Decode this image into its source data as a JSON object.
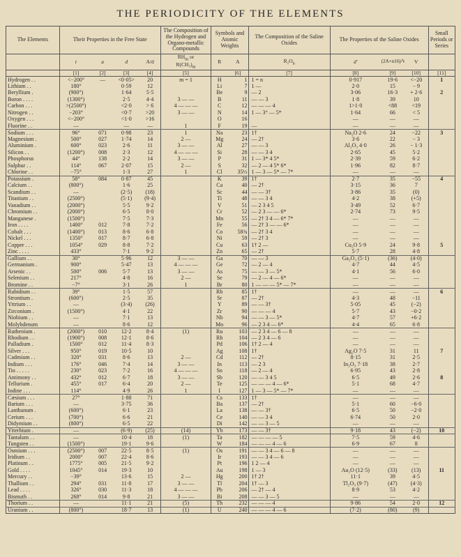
{
  "title": "THE PERIODICITY OF THE ELEMENTS",
  "headers": {
    "elements": "The Elements",
    "free_state": "Their Properties in the Free State",
    "hydrogen_comp": "The Composition of the Hydrogen and Organo-metallic Compounds",
    "symbols": "Symbols and Atomic Weights",
    "saline_comp": "The Composition of the Saline Oxides",
    "saline_props": "The Properties of the Saline Oxides",
    "periods": "Small Periods or Series"
  },
  "subheaders": {
    "t": "t",
    "a": "a",
    "d": "d",
    "A_d": "A/d",
    "RHm": "RH<sub>m</sub> or R(CH<sub>3</sub>)<sub>m</sub>",
    "R": "R",
    "A": "A",
    "R2On": "R₂O<sub>n</sub>",
    "dprime": "d′",
    "vol": "(2A+n16)/V",
    "V": "V",
    "col_nums": [
      "[1]",
      "[2]",
      "[3]",
      "[4]",
      "[5]",
      "[6]",
      "[7]",
      "[8]",
      "[9]",
      "[10]",
      "[11]"
    ]
  },
  "rows": [
    {
      "el": "Hydrogen",
      "t": "<−200°",
      "a": "—",
      "d": "<0·05>",
      "Ad": "20",
      "h": "m = 1",
      "R": "H",
      "A": "1",
      "ox": "1 = n",
      "d2": "0·917",
      "v": "19·6",
      "V": "<−20",
      "s": "1",
      "g": 1
    },
    {
      "el": "Lithium",
      "t": "180°",
      "a": "",
      "d": "0·59",
      "Ad": "12",
      "h": "",
      "R": "Li",
      "A": "7",
      "ox": "1 —",
      "d2": "2·0",
      "v": "15",
      "V": "− 9",
      "s": "",
      "g": 1
    },
    {
      "el": "Beryllium",
      "t": "(900°)",
      "a": "",
      "d": "1·64",
      "Ad": "5·5",
      "h": "",
      "R": "Be",
      "A": "9",
      "ox": "— 2",
      "d2": "3·06",
      "v": "16·3",
      "V": "+ 2·6",
      "s": "2",
      "g": 1
    },
    {
      "el": "Boron",
      "t": "(1300°)",
      "a": "",
      "d": "2·5",
      "Ad": "4·4",
      "h": "3 — —",
      "R": "B",
      "A": "11",
      "ox": "— — 3",
      "d2": "1·8",
      "v": "39",
      "V": "10",
      "s": "",
      "g": 1
    },
    {
      "el": "Carbon",
      "t": ">(2500°)",
      "a": "",
      "d": "<2·0",
      "Ad": "> 6",
      "h": "4 — — —",
      "R": "C",
      "A": "12",
      "ox": "— — — 4",
      "d2": "1>1·0",
      "v": "<88",
      "V": "<19",
      "s": "",
      "g": 1
    },
    {
      "el": "Nitrogen",
      "t": "−203°",
      "a": "",
      "d": "<0·7",
      "Ad": ">20",
      "h": "3 — —",
      "R": "N",
      "A": "14",
      "ox": "1 — 3° — 5*",
      "d2": "1·64",
      "v": "66",
      "V": "< 5",
      "s": "",
      "g": 1
    },
    {
      "el": "Oxygen",
      "t": "<−200°",
      "a": "",
      "d": "<1·0",
      "Ad": ">16",
      "h": "",
      "R": "O",
      "A": "16",
      "ox": "",
      "d2": "—",
      "v": "—",
      "V": "—",
      "s": "",
      "g": 1
    },
    {
      "el": "Fluorine",
      "t": "—",
      "a": "",
      "d": "—",
      "Ad": "—",
      "h": "1",
      "R": "F",
      "A": "19",
      "ox": "—",
      "d2": "—",
      "v": "—",
      "V": "—",
      "s": "",
      "g": 1
    },
    {
      "el": "Sodium",
      "t": "96°",
      "a": "071",
      "d": "0·98",
      "Ad": "23",
      "h": "1",
      "R": "Na",
      "A": "23",
      "ox": "1†",
      "d2": "Na₂O 2·6",
      "v": "24",
      "V": "−22",
      "s": "3",
      "g": 2
    },
    {
      "el": "Magnesium",
      "t": "500°",
      "a": "027",
      "d": "1·74",
      "Ad": "14",
      "h": "2 —",
      "R": "Mg",
      "A": "24",
      "ox": "— 2†",
      "d2": "3·6",
      "v": "22",
      "V": "− 3",
      "s": "",
      "g": 2
    },
    {
      "el": "Aluminium",
      "t": "600°",
      "a": "023",
      "d": "2·6",
      "Ad": "11",
      "h": "3 — —",
      "R": "Al",
      "A": "27",
      "ox": "— — 3",
      "d2": "Al₂O₃ 4·0",
      "v": "26",
      "V": "− 1·3",
      "s": "",
      "g": 2
    },
    {
      "el": "Silicon",
      "t": "(1200°)",
      "a": "008",
      "d": "2·3",
      "Ad": "12",
      "h": "4 — — —",
      "R": "Si",
      "A": "28",
      "ox": "— — 3 4",
      "d2": "2·65",
      "v": "45",
      "V": "5·2",
      "s": "",
      "g": 2
    },
    {
      "el": "Phosphorus",
      "t": "44°",
      "a": "138",
      "d": "2·2",
      "Ad": "14",
      "h": "3 — —",
      "R": "P",
      "A": "31",
      "ox": "1 — 3* 4 5*",
      "d2": "2·39",
      "v": "59",
      "V": "6·2",
      "s": "",
      "g": 2
    },
    {
      "el": "Sulphur",
      "t": "114°",
      "a": "067",
      "d": "2·07",
      "Ad": "15",
      "h": "2 —",
      "R": "S",
      "A": "32",
      "ox": "— 2 — 4 5* 6*",
      "d2": "1·96",
      "v": "82",
      "V": "8·7",
      "s": "",
      "g": 2
    },
    {
      "el": "Chlorine",
      "t": "−75°",
      "a": "",
      "d": "1·3",
      "Ad": "27",
      "h": "1",
      "R": "Cl",
      "A": "35½",
      "ox": "1 — 3 — 5* — 7*",
      "d2": "—",
      "v": "—",
      "V": "—",
      "s": "",
      "g": 2
    },
    {
      "el": "Potassium",
      "t": "58°",
      "a": "084",
      "d": "0·87",
      "Ad": "45",
      "h": "",
      "R": "K",
      "A": "39",
      "ox": "1†",
      "d2": "2·7",
      "v": "35",
      "V": "−55",
      "s": "4",
      "g": 3
    },
    {
      "el": "Calcium",
      "t": "(800°)",
      "a": "",
      "d": "1·6",
      "Ad": "25",
      "h": "",
      "R": "Ca",
      "A": "40",
      "ox": "— 2†",
      "d2": "3·15",
      "v": "36",
      "V": "7",
      "s": "",
      "g": 3
    },
    {
      "el": "Scandium",
      "t": "—",
      "a": "",
      "d": "(2·5)",
      "Ad": "(18)",
      "h": "",
      "R": "Sc",
      "A": "44",
      "ox": "— — 3†",
      "d2": "3·86",
      "v": "35",
      "V": "(0)",
      "s": "",
      "g": 3
    },
    {
      "el": "Titanium",
      "t": "(2500°)",
      "a": "",
      "d": "(5·1)",
      "Ad": "(9·4)",
      "h": "",
      "R": "Ti",
      "A": "48",
      "ox": "— — 3 4",
      "d2": "4·2",
      "v": "38",
      "V": "(+5)",
      "s": "",
      "g": 3
    },
    {
      "el": "Vanadium",
      "t": "(2000°)",
      "a": "",
      "d": "5·5",
      "Ad": "9·2",
      "h": "",
      "R": "V",
      "A": "51",
      "ox": "— 2 3 4 5",
      "d2": "3·49",
      "v": "52",
      "V": "6·7",
      "s": "",
      "g": 3
    },
    {
      "el": "Chromium",
      "t": "(2000°)",
      "a": "",
      "d": "6·5",
      "Ad": "8·0",
      "h": "",
      "R": "Cr",
      "A": "52",
      "ox": "— 2 3 — — 6*",
      "d2": "2·74",
      "v": "73",
      "V": "9·5",
      "s": "",
      "g": 3
    },
    {
      "el": "Manganese",
      "t": "(1500°)",
      "a": "",
      "d": "7·5",
      "Ad": "7·3",
      "h": "",
      "R": "Mn",
      "A": "55",
      "ox": "— 2† 3 4 — 6* 7*",
      "d2": "—",
      "v": "—",
      "V": "—",
      "s": "",
      "g": 3
    },
    {
      "el": "Iron",
      "t": "1400°",
      "a": "012",
      "d": "7·8",
      "Ad": "7·2",
      "h": "",
      "R": "Fe",
      "A": "56",
      "ox": "— 2† 3 — — 6*",
      "d2": "—",
      "v": "—",
      "V": "—",
      "s": "",
      "g": 3
    },
    {
      "el": "Cobalt",
      "t": "(1400°)",
      "a": "013",
      "d": "8·6",
      "Ad": "6·8",
      "h": "",
      "R": "Co",
      "A": "58¾",
      "ox": "— 2† 3 4",
      "d2": "—",
      "v": "—",
      "V": "—",
      "s": "",
      "g": 3
    },
    {
      "el": "Nickel",
      "t": "1350°",
      "a": "017",
      "d": "8·7",
      "Ad": "6·8",
      "h": "",
      "R": "Ni",
      "A": "59",
      "ox": "— 2† 3",
      "d2": "—",
      "v": "—",
      "V": "—",
      "s": "",
      "g": 3
    },
    {
      "el": "Copper",
      "t": "1054°",
      "a": "029",
      "d": "8·8",
      "Ad": "7·2",
      "h": "",
      "R": "Cu",
      "A": "63",
      "ox": "1† 2 —",
      "d2": "Cu₂O 5·9",
      "v": "24",
      "V": "9·8",
      "s": "5",
      "g": 3
    },
    {
      "el": "Zinc",
      "t": "433°",
      "a": "",
      "d": "7·1",
      "Ad": "9·2",
      "h": "",
      "R": "Zn",
      "A": "65",
      "ox": "— 2†",
      "d2": "5·7",
      "v": "28",
      "V": "4·8",
      "s": "",
      "g": 3
    },
    {
      "el": "Gallium",
      "t": "30°",
      "a": "",
      "d": "5·96",
      "Ad": "12",
      "h": "3 — —",
      "R": "Ga",
      "A": "70",
      "ox": "— — 3",
      "d2": "Ga₂O₃ (5·1)",
      "v": "(36)",
      "V": "(4·0)",
      "s": "",
      "g": 4
    },
    {
      "el": "Germanium",
      "t": "900°",
      "a": "",
      "d": "5·47",
      "Ad": "13",
      "h": "4 — — —",
      "R": "Ge",
      "A": "72",
      "ox": "— 2 — 4",
      "d2": "4·7",
      "v": "44",
      "V": "4·5",
      "s": "",
      "g": 4
    },
    {
      "el": "Arsenic",
      "t": "500°",
      "a": "006",
      "d": "5·7",
      "Ad": "13",
      "h": "3 — —",
      "R": "As",
      "A": "75",
      "ox": "— — 3 — 5*",
      "d2": "4·1",
      "v": "56",
      "V": "6·0",
      "s": "",
      "g": 4
    },
    {
      "el": "Selenium",
      "t": "217°",
      "a": "",
      "d": "4·8",
      "Ad": "16",
      "h": "2 —",
      "R": "Se",
      "A": "79",
      "ox": "— 2 — 4 — 6*",
      "d2": "—",
      "v": "—",
      "V": "—",
      "s": "",
      "g": 4
    },
    {
      "el": "Bromine",
      "t": "−7°",
      "a": "",
      "d": "3·1",
      "Ad": "26",
      "h": "1",
      "R": "Br",
      "A": "80",
      "ox": "1 — — — 5* — 7*",
      "d2": "—",
      "v": "—",
      "V": "—",
      "s": "",
      "g": 4
    },
    {
      "el": "Rubidium",
      "t": "39°",
      "a": "",
      "d": "1·5",
      "Ad": "57",
      "h": "",
      "R": "Rb",
      "A": "85",
      "ox": "1†",
      "d2": "—",
      "v": "—",
      "V": "—",
      "s": "6",
      "g": 5
    },
    {
      "el": "Strontium",
      "t": "(600°)",
      "a": "",
      "d": "2·5",
      "Ad": "35",
      "h": "",
      "R": "Sr",
      "A": "87",
      "ox": "— 2†",
      "d2": "4·3",
      "v": "48",
      "V": "−11",
      "s": "",
      "g": 5
    },
    {
      "el": "Yttrium",
      "t": "—",
      "a": "",
      "d": "(3·4)",
      "Ad": "(26)",
      "h": "",
      "R": "Y",
      "A": "89",
      "ox": "— — 3†",
      "d2": "5·05",
      "v": "45",
      "V": "(−2)",
      "s": "",
      "g": 5
    },
    {
      "el": "Zirconium",
      "t": "(1500°)",
      "a": "",
      "d": "4·1",
      "Ad": "22",
      "h": "",
      "R": "Zr",
      "A": "90",
      "ox": "— — — 4",
      "d2": "5·7",
      "v": "43",
      "V": "−0·2",
      "s": "",
      "g": 5
    },
    {
      "el": "Niobium",
      "t": "—",
      "a": "",
      "d": "7·1",
      "Ad": "13",
      "h": "",
      "R": "Nb",
      "A": "94",
      "ox": "— — 3 — 5*",
      "d2": "4·7",
      "v": "57",
      "V": "+6·2",
      "s": "",
      "g": 5
    },
    {
      "el": "Molybdenum",
      "t": "—",
      "a": "",
      "d": "8·6",
      "Ad": "12",
      "h": "",
      "R": "Mo",
      "A": "96",
      "ox": "— 2 3 4 — 6*",
      "d2": "4·4",
      "v": "65",
      "V": "6·8",
      "s": "",
      "g": 5
    },
    {
      "el": "Ruthenium",
      "t": "(2000°)",
      "a": "010",
      "d": "12·2",
      "Ad": "8·4",
      "h": "(1)",
      "R": "Ru",
      "A": "103",
      "ox": "— 2 3 4 — 6 — 8",
      "d2": "—",
      "v": "—",
      "V": "—",
      "s": "",
      "g": 6
    },
    {
      "el": "Rhodium",
      "t": "(1900°)",
      "a": "008",
      "d": "12·1",
      "Ad": "8·6",
      "h": "",
      "R": "Rh",
      "A": "104",
      "ox": "— 2 3 4 — 6",
      "d2": "—",
      "v": "—",
      "V": "—",
      "s": "",
      "g": 6
    },
    {
      "el": "Palladium",
      "t": "1500°",
      "a": "012",
      "d": "11·4",
      "Ad": "8·3",
      "h": "",
      "R": "Pd",
      "A": "106",
      "ox": "1† 2 — 4",
      "d2": "—",
      "v": "—",
      "V": "—",
      "s": "",
      "g": 6
    },
    {
      "el": "Silver",
      "t": "950°",
      "a": "019",
      "d": "10·5",
      "Ad": "10",
      "h": "",
      "R": "Ag",
      "A": "108",
      "ox": "1†",
      "d2": "Ag₂O 7·5",
      "v": "31",
      "V": "11",
      "s": "7",
      "g": 6
    },
    {
      "el": "Cadmium",
      "t": "320°",
      "a": "031",
      "d": "8·6",
      "Ad": "13",
      "h": "2 —",
      "R": "Cd",
      "A": "112",
      "ox": "— 2†",
      "d2": "8·15",
      "v": "31",
      "V": "2·5",
      "s": "",
      "g": 6
    },
    {
      "el": "Indium",
      "t": "176°",
      "a": "046",
      "d": "7·4",
      "Ad": "14",
      "h": "3 — —",
      "R": "In",
      "A": "113",
      "ox": "— 2 3",
      "d2": "In₂O₃ 7·18",
      "v": "38",
      "V": "2·7",
      "s": "",
      "g": 6
    },
    {
      "el": "Tin",
      "t": "230°",
      "a": "023",
      "d": "7·2",
      "Ad": "16",
      "h": "4 — — —",
      "R": "Sn",
      "A": "118",
      "ox": "— 2 — 4",
      "d2": "6·95",
      "v": "43",
      "V": "2·8",
      "s": "",
      "g": 6
    },
    {
      "el": "Antimony",
      "t": "432°",
      "a": "012",
      "d": "6·7",
      "Ad": "18",
      "h": "3 — —",
      "R": "Sb",
      "A": "120",
      "ox": "— — 3 4 5",
      "d2": "6·5",
      "v": "49",
      "V": "2·6",
      "s": "8",
      "g": 6
    },
    {
      "el": "Tellurium",
      "t": "455°",
      "a": "017",
      "d": "6·4",
      "Ad": "20",
      "h": "2 —",
      "R": "Te",
      "A": "125",
      "ox": "— — — 4 — 6*",
      "d2": "5·1",
      "v": "68",
      "V": "4·7",
      "s": "",
      "g": 6
    },
    {
      "el": "Iodine",
      "t": "114°",
      "a": "",
      "d": "4·9",
      "Ad": "26",
      "h": "1",
      "R": "I",
      "A": "127",
      "ox": "1 — 3 — 5* — 7*",
      "d2": "—",
      "v": "—",
      "V": "—",
      "s": "",
      "g": 6
    },
    {
      "el": "Cæsium",
      "t": "27°",
      "a": "",
      "d": "1·88",
      "Ad": "71",
      "h": "",
      "R": "Cs",
      "A": "133",
      "ox": "1†",
      "d2": "—",
      "v": "—",
      "V": "—",
      "s": "",
      "g": 7
    },
    {
      "el": "Barium",
      "t": "—",
      "a": "",
      "d": "3·75",
      "Ad": "36",
      "h": "",
      "R": "Ba",
      "A": "137",
      "ox": "— 2†",
      "d2": "5·1",
      "v": "60",
      "V": "−6·0",
      "s": "",
      "g": 7
    },
    {
      "el": "Lanthanum",
      "t": "(600°)",
      "a": "",
      "d": "6·1",
      "Ad": "23",
      "h": "",
      "R": "La",
      "A": "138",
      "ox": "— — 3†",
      "d2": "6·5",
      "v": "50",
      "V": "−2·0",
      "s": "",
      "g": 7
    },
    {
      "el": "Cerium",
      "t": "(700°)",
      "a": "",
      "d": "6·6",
      "Ad": "21",
      "h": "",
      "R": "Ce",
      "A": "140",
      "ox": "— — 3 4",
      "d2": "6·74",
      "v": "50",
      "V": "2·0",
      "s": "",
      "g": 7
    },
    {
      "el": "Didymium",
      "t": "(800°)",
      "a": "",
      "d": "6·5",
      "Ad": "22",
      "h": "",
      "R": "Di",
      "A": "142",
      "ox": "— — 3 — 5",
      "d2": "—",
      "v": "—",
      "V": "—",
      "s": "",
      "g": 7
    },
    {
      "el": "Ytterbium",
      "t": "—",
      "a": "",
      "d": "(6·9)",
      "Ad": "(25)",
      "h": "(14)",
      "R": "Yb",
      "A": "173",
      "ox": "— — 3†",
      "d2": "9·18",
      "v": "43",
      "V": "(−2)",
      "s": "10",
      "g": 8
    },
    {
      "el": "Tantalum",
      "t": "—",
      "a": "",
      "d": "10·4",
      "Ad": "18",
      "h": "(1)",
      "R": "Ta",
      "A": "182",
      "ox": "— — — — 5",
      "d2": "7·5",
      "v": "59",
      "V": "4·6",
      "s": "",
      "g": 9
    },
    {
      "el": "Tungsten",
      "t": "(1500°)",
      "a": "",
      "d": "19·1",
      "Ad": "9·6",
      "h": "",
      "R": "W",
      "A": "184",
      "ox": "— — — 4 — 6",
      "d2": "6·9",
      "v": "67",
      "V": "8",
      "s": "",
      "g": 9
    },
    {
      "el": "Osmium",
      "t": "(2500°)",
      "a": "007",
      "d": "22·5",
      "Ad": "8·5",
      "h": "(1)",
      "R": "Os",
      "A": "191",
      "ox": "— — 3 4 — 6 — 8",
      "d2": "—",
      "v": "—",
      "V": "—",
      "s": "",
      "g": 10
    },
    {
      "el": "Iridium",
      "t": "2000°",
      "a": "007",
      "d": "22·4",
      "Ad": "8·6",
      "h": "",
      "R": "Ir",
      "A": "193",
      "ox": "— — 3 4 — 6",
      "d2": "—",
      "v": "—",
      "V": "—",
      "s": "",
      "g": 10
    },
    {
      "el": "Platinum",
      "t": "1775°",
      "a": "005",
      "d": "21·5",
      "Ad": "9·2",
      "h": "",
      "R": "Pt",
      "A": "196",
      "ox": "1 2 — 4",
      "d2": "—",
      "v": "—",
      "V": "—",
      "s": "",
      "g": 10
    },
    {
      "el": "Gold",
      "t": "1045°",
      "a": "014",
      "d": "19·3",
      "Ad": "10",
      "h": "",
      "R": "Au",
      "A": "198",
      "ox": "1 — 3",
      "d2": "Au₂O (12·5)",
      "v": "(33)",
      "V": "(13)",
      "s": "11",
      "g": 10
    },
    {
      "el": "Mercury",
      "t": "−39°",
      "a": "",
      "d": "13·6",
      "Ad": "15",
      "h": "2 —",
      "R": "Hg",
      "A": "200",
      "ox": "1† 2†",
      "d2": "11·1",
      "v": "39",
      "V": "4·5",
      "s": "",
      "g": 10
    },
    {
      "el": "Thallium",
      "t": "294°",
      "a": "031",
      "d": "11·8",
      "Ad": "17",
      "h": "3 — —",
      "R": "Tl",
      "A": "204",
      "ox": "1† — 3",
      "d2": "Tl₂O₃ (9·7)",
      "v": "(47)",
      "V": "(4·3)",
      "s": "",
      "g": 10
    },
    {
      "el": "Lead",
      "t": "326°",
      "a": "030",
      "d": "11·3",
      "Ad": "18",
      "h": "4 — — —",
      "R": "Pb",
      "A": "206",
      "ox": "— 2† — 4",
      "d2": "8·9",
      "v": "53",
      "V": "4·2",
      "s": "",
      "g": 10
    },
    {
      "el": "Bismuth",
      "t": "268°",
      "a": "014",
      "d": "9·8",
      "Ad": "21",
      "h": "3 — —",
      "R": "Bi",
      "A": "208",
      "ox": "— — 3 — 5",
      "d2": "—",
      "v": "—",
      "V": "—",
      "s": "",
      "g": 10
    },
    {
      "el": "Thorium",
      "t": "—",
      "a": "",
      "d": "11·1",
      "Ad": "21",
      "h": "(5)",
      "R": "Th",
      "A": "232",
      "ox": "— — — 4",
      "d2": "9·86",
      "v": "54",
      "V": "2·0",
      "s": "12",
      "g": 11
    },
    {
      "el": "Uranium",
      "t": "(800°)",
      "a": "",
      "d": "18·7",
      "Ad": "13",
      "h": "(1)",
      "R": "U",
      "A": "240",
      "ox": "— — — 4 — 6",
      "d2": "(7·2)",
      "v": "(80)",
      "V": "(9)",
      "s": "",
      "g": 12
    }
  ]
}
